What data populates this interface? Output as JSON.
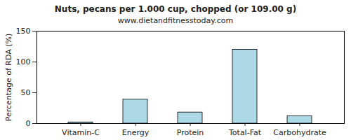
{
  "chart_data": {
    "type": "bar",
    "title": "Nuts, pecans per 1.000 cup, chopped (or 109.00 g)",
    "subtitle": "www.dietandfitnesstoday.com",
    "y_label": "Percentage of RDA (%)",
    "categories": [
      "Vitamin-C",
      "Energy",
      "Protein",
      "Total-Fat",
      "Carbohydrate"
    ],
    "values": [
      2,
      39,
      18,
      120,
      12
    ],
    "color": "#add8e6",
    "ylim": [
      0,
      150
    ],
    "yticks": [
      0,
      50,
      100,
      150
    ],
    "grid": false
  }
}
